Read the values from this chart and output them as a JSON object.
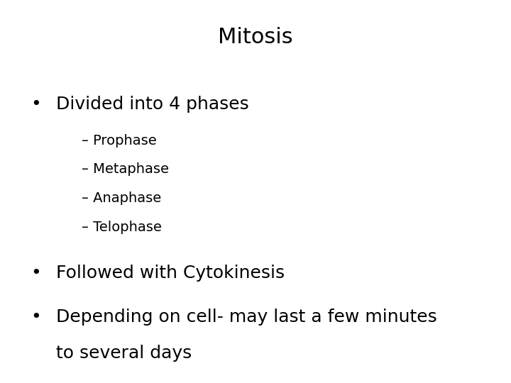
{
  "title": "Mitosis",
  "title_fontsize": 22,
  "title_fontweight": "normal",
  "background_color": "#ffffff",
  "text_color": "#000000",
  "bullet1": "Divided into 4 phases",
  "bullet1_fontsize": 18,
  "sub_items": [
    "– Prophase",
    "– Metaphase",
    "– Anaphase",
    "– Telophase"
  ],
  "sub_fontsize": 14,
  "bullet2": "Followed with Cytokinesis",
  "bullet2_fontsize": 18,
  "bullet3_line1": "Depending on cell- may last a few minutes",
  "bullet3_line2": "to several days",
  "bullet3_fontsize": 18,
  "bullet_char": "•",
  "font_family": "DejaVu Sans"
}
